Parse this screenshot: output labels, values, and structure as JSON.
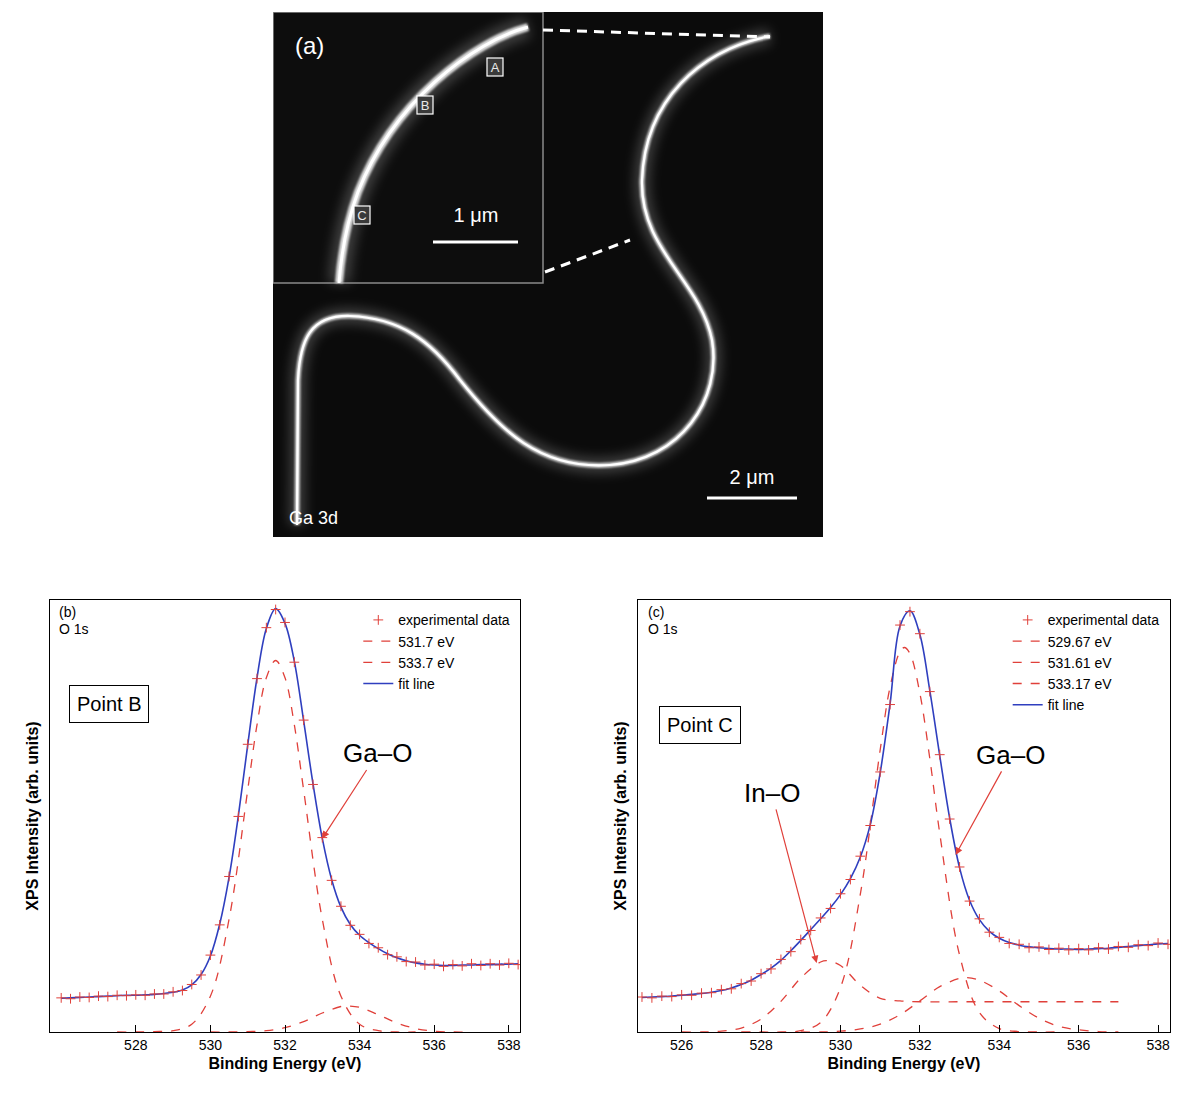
{
  "micrograph": {
    "panel": "(a)",
    "signal": "Ga 3d",
    "scale_bar": "2 μm",
    "inset": {
      "scale_bar": "1 μm",
      "points": [
        "A",
        "B",
        "C"
      ]
    }
  },
  "chart_data": [
    {
      "type": "line",
      "panel": "(b)",
      "title": "O 1s",
      "point_label": "Point B",
      "x_label": "Binding Energy (eV)",
      "y_label": "XPS Intensity (arb. units)",
      "xlim": [
        525.7,
        538.3
      ],
      "xticks": [
        528,
        530,
        532,
        534,
        536,
        538
      ],
      "ylim": [
        0,
        100
      ],
      "tick_labels": "x",
      "grid": false,
      "legend": "top right",
      "annotations": [
        {
          "text": "Ga–O",
          "x": 533.0,
          "y": 44.8
        }
      ],
      "x": [
        526,
        526.25,
        526.5,
        526.75,
        527,
        527.25,
        527.5,
        527.75,
        528,
        528.25,
        528.5,
        528.75,
        529,
        529.25,
        529.5,
        529.75,
        530,
        530.25,
        530.5,
        530.75,
        531,
        531.25,
        531.5,
        531.75,
        532,
        532.25,
        532.5,
        532.75,
        533,
        533.25,
        533.5,
        533.75,
        534,
        534.25,
        534.5,
        534.75,
        535,
        535.25,
        535.5,
        535.75,
        536,
        536.25,
        536.5,
        536.75,
        537,
        537.25,
        537.5,
        537.75,
        538,
        538.25
      ],
      "series": [
        {
          "name": "experimental data",
          "type": "scatter",
          "marker": "cross",
          "color": "#e0403a",
          "values": [
            7.9,
            7.7,
            8.1,
            8.0,
            8.3,
            8.2,
            8.5,
            8.4,
            8.6,
            8.5,
            8.8,
            8.8,
            9.3,
            9.6,
            11.0,
            13.2,
            17.8,
            24.8,
            36.0,
            49.9,
            66.6,
            81.8,
            93.6,
            97.8,
            94.8,
            85.6,
            72.2,
            57.3,
            45.0,
            35.1,
            29.1,
            24.7,
            22.6,
            20.5,
            19.5,
            17.9,
            17.4,
            16.3,
            16.2,
            15.5,
            15.7,
            15.2,
            15.6,
            15.3,
            15.8,
            15.4,
            15.8,
            15.5,
            15.9,
            15.6
          ]
        },
        {
          "name": "531.7 eV",
          "type": "line",
          "line_style": "dashed",
          "color": "#e0403a",
          "x": [
            527.5,
            528,
            528.5,
            529,
            529.5,
            530,
            530.5,
            531,
            531.25,
            531.5,
            531.75,
            532,
            532.25,
            532.5,
            533,
            533.5,
            534,
            534.5,
            535,
            535.5
          ],
          "values": [
            0.0,
            0.0,
            0.1,
            0.3,
            1.8,
            8.3,
            26.1,
            56.0,
            71.1,
            82.0,
            86.0,
            82.0,
            71.1,
            56.0,
            26.1,
            8.3,
            1.8,
            0.3,
            0.0,
            0.0
          ]
        },
        {
          "name": "533.7 eV",
          "type": "line",
          "line_style": "dashed",
          "color": "#e0403a",
          "x": [
            530,
            530.5,
            531,
            531.5,
            532,
            532.5,
            533,
            533.5,
            533.7,
            534,
            534.5,
            535,
            535.5,
            536,
            536.5,
            537
          ],
          "values": [
            0.0,
            0.0,
            0.1,
            0.3,
            1.0,
            2.4,
            4.4,
            5.9,
            6.0,
            5.7,
            4.0,
            2.1,
            0.8,
            0.2,
            0.0,
            0.0
          ]
        },
        {
          "name": "fit line",
          "type": "line",
          "line_style": "solid",
          "color": "#2f3fbf",
          "values": [
            7.8,
            7.9,
            8.0,
            8.1,
            8.2,
            8.3,
            8.4,
            8.5,
            8.5,
            8.6,
            8.7,
            8.9,
            9.2,
            9.7,
            10.9,
            13.3,
            17.6,
            25.0,
            35.8,
            50.1,
            66.4,
            82.0,
            93.4,
            98.0,
            94.6,
            85.8,
            72.0,
            57.5,
            44.8,
            35.3,
            28.9,
            24.9,
            22.4,
            20.7,
            19.3,
            18.1,
            17.2,
            16.5,
            16.0,
            15.7,
            15.5,
            15.4,
            15.4,
            15.5,
            15.5,
            15.6,
            15.6,
            15.7,
            15.7,
            15.8
          ]
        }
      ]
    },
    {
      "type": "line",
      "panel": "(c)",
      "title": "O 1s",
      "point_label": "Point C",
      "x_label": "Binding Energy (eV)",
      "y_label": "XPS Intensity (arb. units)",
      "xlim": [
        524.9,
        538.3
      ],
      "xticks": [
        526,
        528,
        530,
        532,
        534,
        536,
        538
      ],
      "ylim": [
        0,
        100
      ],
      "tick_labels": "x",
      "grid": false,
      "legend": "top right",
      "annotations": [
        {
          "text": "In–O",
          "x": 529.4,
          "y": 16.0
        },
        {
          "text": "Ga–O",
          "x": 532.9,
          "y": 41.0
        }
      ],
      "x": [
        525,
        525.25,
        525.5,
        525.75,
        526,
        526.25,
        526.5,
        526.75,
        527,
        527.25,
        527.5,
        527.75,
        528,
        528.25,
        528.5,
        528.75,
        529,
        529.25,
        529.5,
        529.75,
        530,
        530.25,
        530.5,
        530.75,
        531,
        531.25,
        531.5,
        531.75,
        532,
        532.25,
        532.5,
        532.75,
        533,
        533.25,
        533.5,
        533.75,
        534,
        534.25,
        534.5,
        534.75,
        535,
        535.25,
        535.5,
        535.75,
        536,
        536.25,
        536.5,
        536.75,
        537,
        537.25,
        537.5,
        537.75,
        538,
        538.25
      ],
      "series": [
        {
          "name": "experimental data",
          "type": "scatter",
          "marker": "cross",
          "color": "#e0403a",
          "values": [
            8.1,
            7.9,
            8.3,
            8.2,
            8.6,
            8.5,
            9.0,
            9.1,
            9.8,
            10.0,
            11.2,
            11.8,
            13.5,
            14.6,
            16.8,
            18.6,
            21.4,
            23.5,
            26.4,
            28.6,
            32.0,
            35.3,
            40.7,
            47.8,
            60.2,
            75.8,
            94.2,
            97.3,
            92.2,
            78.8,
            64.2,
            49.3,
            38.2,
            30.3,
            26.2,
            23.1,
            21.9,
            20.5,
            20.3,
            19.5,
            19.7,
            19.1,
            19.4,
            19.0,
            19.3,
            19.0,
            19.5,
            19.2,
            19.8,
            19.6,
            20.2,
            20.0,
            20.6,
            20.3
          ]
        },
        {
          "name": "529.67 eV",
          "type": "line",
          "line_style": "dashed",
          "color": "#e0403a",
          "x": [
            526,
            526.5,
            527,
            527.5,
            528,
            528.5,
            529,
            529.5,
            529.67,
            530,
            530.5,
            531,
            531.5,
            532,
            533,
            534,
            535,
            536,
            537
          ],
          "values": [
            0.0,
            0.0,
            0.2,
            0.9,
            3.0,
            7.1,
            12.5,
            16.2,
            16.5,
            15.4,
            10.8,
            7.8,
            7.2,
            7.0,
            7.0,
            7.0,
            7.0,
            7.0,
            7.0
          ]
        },
        {
          "name": "531.61 eV",
          "type": "line",
          "line_style": "dashed",
          "color": "#e0403a",
          "x": [
            527.5,
            528,
            528.5,
            529,
            529.5,
            530,
            530.5,
            531,
            531.25,
            531.5,
            531.61,
            531.75,
            532,
            532.25,
            532.5,
            533,
            533.5,
            534,
            534.5,
            535,
            535.5
          ],
          "values": [
            0.0,
            0.0,
            0.0,
            0.3,
            2.2,
            10.3,
            31.9,
            65.3,
            79.9,
            88.1,
            89.0,
            87.6,
            78.4,
            63.3,
            46.0,
            17.8,
            4.5,
            0.8,
            0.1,
            0.0,
            0.0
          ]
        },
        {
          "name": "533.17 eV",
          "type": "line",
          "line_style": "dashed",
          "color": "#e0403a",
          "x": [
            529,
            529.5,
            530,
            530.5,
            531,
            531.5,
            532,
            532.5,
            533,
            533.17,
            533.5,
            534,
            534.5,
            535,
            535.5,
            536,
            536.5,
            537
          ],
          "values": [
            0.0,
            0.0,
            0.2,
            0.7,
            1.8,
            4.0,
            7.2,
            10.5,
            12.4,
            12.6,
            12.0,
            9.5,
            6.1,
            3.2,
            1.3,
            0.5,
            0.1,
            0.0
          ]
        },
        {
          "name": "fit line",
          "type": "line",
          "line_style": "solid",
          "color": "#2f3fbf",
          "values": [
            8.0,
            8.1,
            8.2,
            8.3,
            8.5,
            8.7,
            8.9,
            9.2,
            9.6,
            10.2,
            11.0,
            12.0,
            13.3,
            14.8,
            16.6,
            18.8,
            21.2,
            23.7,
            26.2,
            28.8,
            31.8,
            35.5,
            40.5,
            48.0,
            60.0,
            76.0,
            94.0,
            97.5,
            92.0,
            79.0,
            64.0,
            49.5,
            38.0,
            30.5,
            26.0,
            23.3,
            21.7,
            20.7,
            20.1,
            19.7,
            19.5,
            19.3,
            19.2,
            19.2,
            19.1,
            19.2,
            19.3,
            19.4,
            19.6,
            19.8,
            20.0,
            20.2,
            20.4,
            20.5
          ]
        }
      ]
    }
  ]
}
